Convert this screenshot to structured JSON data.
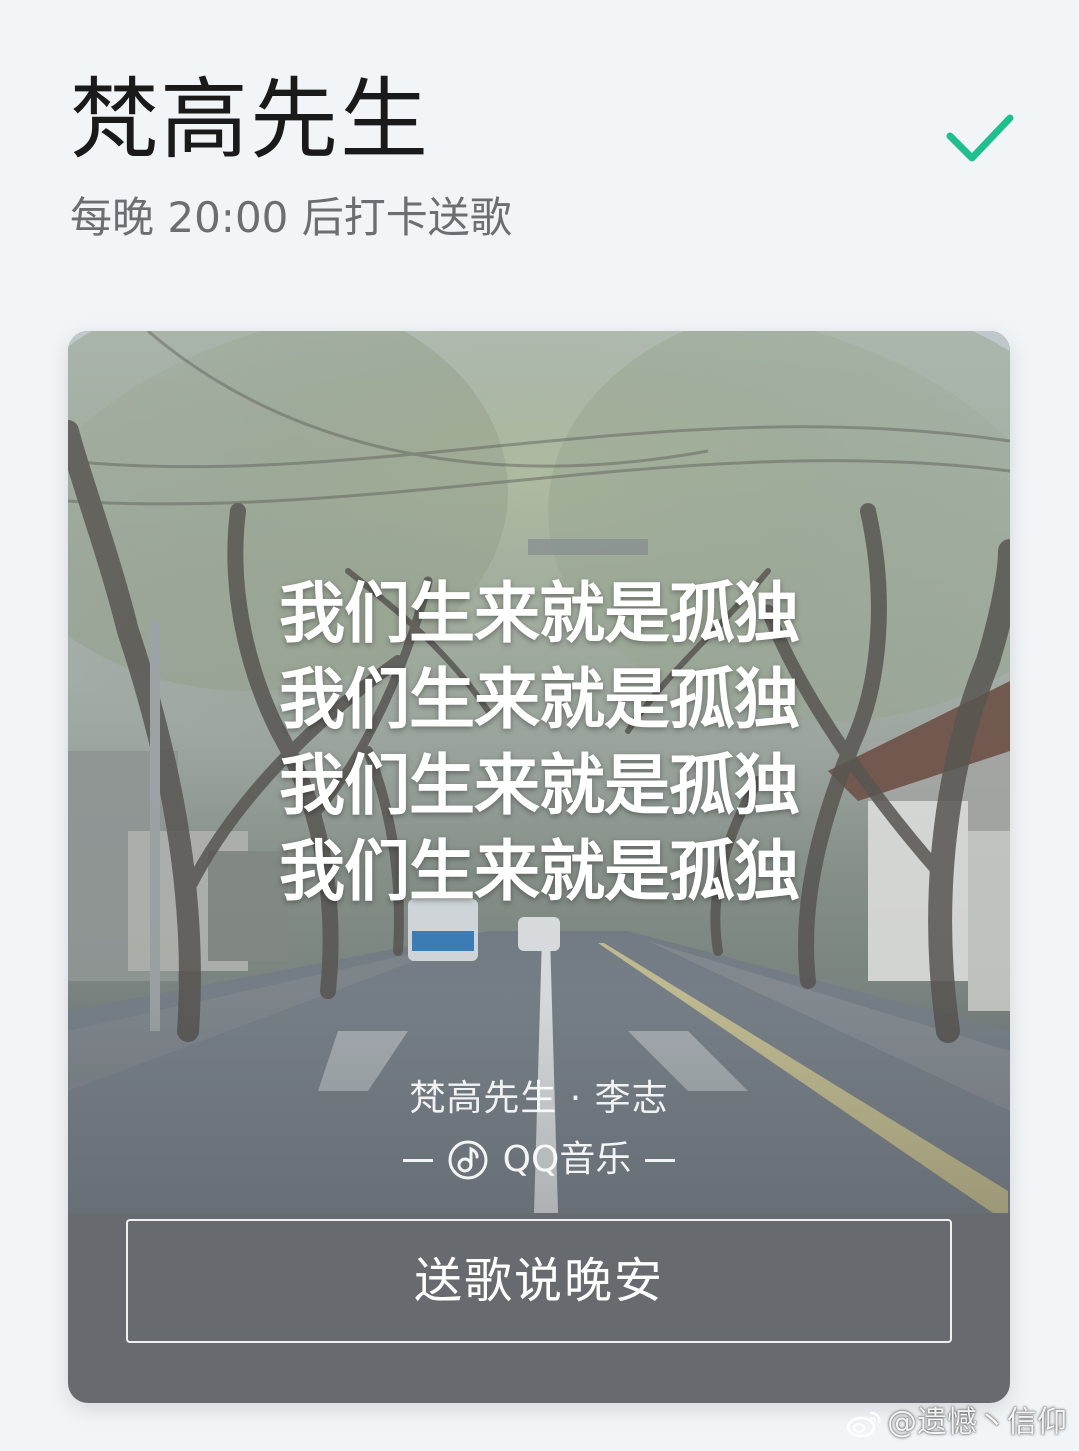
{
  "header": {
    "title": "梵高先生",
    "subtitle": "每晚 20:00 后打卡送歌",
    "check_icon": "checkmark-icon",
    "accent_color": "#1fbf8f"
  },
  "card": {
    "lyrics": [
      "我们生来就是孤独",
      "我们生来就是孤独",
      "我们生来就是孤独",
      "我们生来就是孤独"
    ],
    "song_credit": "梵高先生 · 李志",
    "brand": {
      "logo_icon": "qq-music-logo-icon",
      "name": "QQ音乐"
    },
    "send_button_label": "送歌说晚安"
  },
  "watermark": {
    "icon": "weibo-icon",
    "text": "@遗憾丶信仰"
  }
}
